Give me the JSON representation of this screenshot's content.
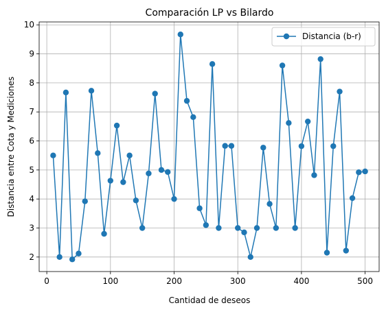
{
  "chart_data": {
    "type": "line",
    "title": "Comparación LP vs Bilardo",
    "xlabel": "Cantidad de deseos",
    "ylabel": "Distancia entre Cota y Mediciones",
    "xlim": [
      -12,
      522
    ],
    "ylim": [
      1.5,
      10.1
    ],
    "xticks": [
      0,
      100,
      200,
      300,
      400,
      500
    ],
    "yticks": [
      2,
      3,
      4,
      5,
      6,
      7,
      8,
      9,
      10
    ],
    "grid": true,
    "legend_position": "top-right",
    "series": [
      {
        "name": "Distancia (b-r)",
        "color": "#1f77b4",
        "marker": "circle",
        "x": [
          10,
          20,
          30,
          40,
          50,
          60,
          70,
          80,
          90,
          100,
          110,
          120,
          130,
          140,
          150,
          160,
          170,
          180,
          190,
          200,
          210,
          220,
          230,
          240,
          250,
          260,
          270,
          280,
          290,
          300,
          310,
          320,
          330,
          340,
          350,
          360,
          370,
          380,
          390,
          400,
          410,
          420,
          430,
          440,
          450,
          460,
          470,
          480,
          490,
          500
        ],
        "y": [
          5.5,
          2.0,
          7.67,
          1.92,
          2.12,
          3.92,
          7.73,
          5.58,
          2.8,
          4.63,
          6.53,
          4.58,
          5.5,
          3.95,
          3.0,
          4.88,
          7.63,
          5.0,
          4.93,
          4.0,
          9.67,
          7.38,
          6.82,
          3.68,
          3.1,
          8.65,
          3.0,
          5.83,
          5.83,
          3.0,
          2.85,
          2.0,
          3.0,
          5.77,
          3.83,
          3.0,
          8.6,
          6.62,
          3.0,
          5.82,
          6.67,
          4.82,
          8.82,
          2.15,
          5.82,
          7.7,
          2.22,
          4.03,
          4.92,
          4.95
        ]
      }
    ]
  }
}
